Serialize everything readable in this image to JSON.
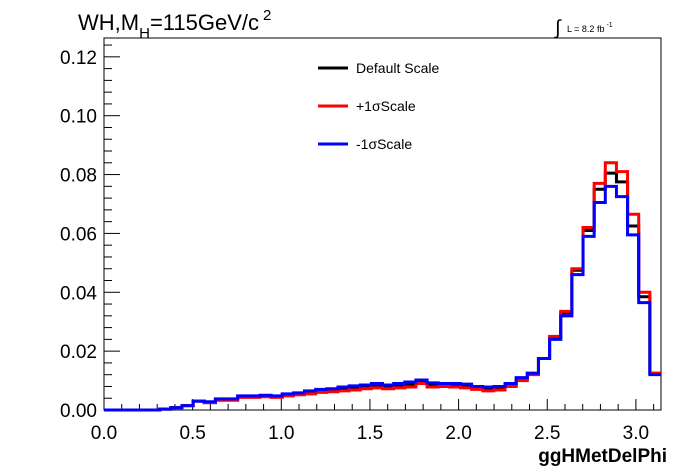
{
  "title": {
    "main": "WH,M",
    "sub": "H",
    "rest": "=115GeV/c",
    "sup": "2"
  },
  "lumi": {
    "integral": "∫",
    "text": "L = 8.2 fb",
    "sup": "-1"
  },
  "chart_data": {
    "type": "line",
    "xlabel": "ggHMetDelPhi",
    "ylabel": "",
    "xlim": [
      0.0,
      3.1416
    ],
    "ylim": [
      0.0,
      0.1264
    ],
    "x_ticks": [
      "0.0",
      "0.5",
      "1.0",
      "1.5",
      "2.0",
      "2.5",
      "3.0"
    ],
    "y_ticks": [
      "0.00",
      "0.02",
      "0.04",
      "0.06",
      "0.08",
      "0.10",
      "0.12"
    ],
    "grid": false,
    "legend_position": "top-center",
    "bin_edges": [
      0.0,
      0.0628,
      0.1257,
      0.1885,
      0.2513,
      0.3142,
      0.377,
      0.4398,
      0.5027,
      0.5655,
      0.6283,
      0.6912,
      0.754,
      0.8168,
      0.8796,
      0.9425,
      1.0053,
      1.0681,
      1.131,
      1.1938,
      1.2566,
      1.3195,
      1.3823,
      1.4451,
      1.508,
      1.5708,
      1.6336,
      1.6965,
      1.7593,
      1.8221,
      1.885,
      1.9478,
      2.0106,
      2.0735,
      2.1363,
      2.1991,
      2.2619,
      2.3248,
      2.3876,
      2.4504,
      2.5133,
      2.5761,
      2.6389,
      2.7018,
      2.7646,
      2.8274,
      2.8903,
      2.9531,
      3.0159,
      3.0788,
      3.1416
    ],
    "series": [
      {
        "name": "Default Scale",
        "color": "#000000",
        "values": [
          0.0,
          0.0,
          0.0,
          0.0,
          0.0,
          0.0003,
          0.0008,
          0.0015,
          0.003,
          0.0025,
          0.0035,
          0.0035,
          0.0045,
          0.0045,
          0.0048,
          0.0045,
          0.0052,
          0.0055,
          0.006,
          0.0065,
          0.0068,
          0.0072,
          0.0075,
          0.008,
          0.0082,
          0.0078,
          0.0082,
          0.0085,
          0.0095,
          0.0085,
          0.0085,
          0.0085,
          0.0082,
          0.0075,
          0.0072,
          0.0075,
          0.0085,
          0.0105,
          0.0125,
          0.0175,
          0.0245,
          0.033,
          0.0475,
          0.061,
          0.075,
          0.0805,
          0.0775,
          0.0625,
          0.0385,
          0.0125
        ]
      },
      {
        "name": "+1σScale",
        "color": "#ff0000",
        "values": [
          0.0,
          0.0,
          0.0,
          0.0,
          0.0,
          0.0003,
          0.0008,
          0.0015,
          0.003,
          0.0025,
          0.0033,
          0.0033,
          0.0043,
          0.0043,
          0.0045,
          0.0043,
          0.0048,
          0.0052,
          0.0055,
          0.006,
          0.0062,
          0.0065,
          0.0068,
          0.0072,
          0.0075,
          0.0072,
          0.0075,
          0.0078,
          0.009,
          0.0078,
          0.008,
          0.0078,
          0.0075,
          0.007,
          0.0065,
          0.0068,
          0.008,
          0.01,
          0.012,
          0.0175,
          0.025,
          0.0335,
          0.048,
          0.062,
          0.077,
          0.084,
          0.081,
          0.0665,
          0.04,
          0.0125
        ]
      },
      {
        "name": "-1σScale",
        "color": "#0000ff",
        "values": [
          0.0,
          0.0,
          0.0,
          0.0,
          0.0,
          0.0003,
          0.0008,
          0.0015,
          0.003,
          0.0028,
          0.0038,
          0.0038,
          0.0048,
          0.0048,
          0.005,
          0.0048,
          0.0055,
          0.0058,
          0.0065,
          0.007,
          0.0072,
          0.0078,
          0.0082,
          0.0085,
          0.009,
          0.0085,
          0.009,
          0.0095,
          0.0102,
          0.0092,
          0.009,
          0.009,
          0.0088,
          0.008,
          0.0078,
          0.008,
          0.009,
          0.011,
          0.0125,
          0.0175,
          0.024,
          0.032,
          0.046,
          0.059,
          0.0705,
          0.076,
          0.0725,
          0.0595,
          0.0365,
          0.012
        ]
      }
    ]
  }
}
